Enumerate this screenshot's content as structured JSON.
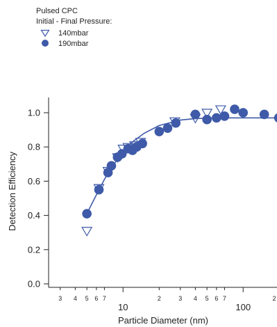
{
  "legend": {
    "title_line1": "Pulsed CPC",
    "title_line2": "Initial - Final Pressure:",
    "entries": [
      {
        "label": "140mbar",
        "marker": "open-triangle-down"
      },
      {
        "label": "190mbar",
        "marker": "filled-circle"
      }
    ]
  },
  "chart_data": {
    "type": "scatter",
    "xlabel": "Particle Diameter (nm)",
    "ylabel": "Detection Efficiency",
    "xscale": "log",
    "xlim": [
      2.4,
      200
    ],
    "ylim": [
      -0.02,
      1.1
    ],
    "grid": false,
    "legend_position": "top-left",
    "color": "#3e5aa8",
    "x_major_ticks": [
      10,
      100
    ],
    "x_major_tick_labels": [
      "10",
      "100"
    ],
    "x_minor_ticks": [
      3,
      4,
      5,
      6,
      7,
      20,
      30,
      40,
      50,
      60,
      70,
      200
    ],
    "x_minor_tick_labels": [
      "3",
      "4",
      "5",
      "6",
      "7",
      "2",
      "3",
      "4",
      "5",
      "6",
      "7",
      "2"
    ],
    "y_ticks": [
      0.0,
      0.2,
      0.4,
      0.6,
      0.8,
      1.0
    ],
    "y_tick_labels": [
      "0.0",
      "0.2",
      "0.4",
      "0.6",
      "0.8",
      "1.0"
    ],
    "series": [
      {
        "name": "140mbar",
        "marker": "open-triangle-down",
        "points": [
          {
            "x": 5.0,
            "y": 0.31
          },
          {
            "x": 6.3,
            "y": 0.56
          },
          {
            "x": 7.5,
            "y": 0.66
          },
          {
            "x": 9.0,
            "y": 0.74
          },
          {
            "x": 10.0,
            "y": 0.79
          },
          {
            "x": 11.0,
            "y": 0.8
          },
          {
            "x": 12.5,
            "y": 0.81
          },
          {
            "x": 14.0,
            "y": 0.83
          },
          {
            "x": 27.0,
            "y": 0.95
          },
          {
            "x": 40.0,
            "y": 0.97
          },
          {
            "x": 50.0,
            "y": 1.0
          },
          {
            "x": 65.0,
            "y": 1.02
          }
        ]
      },
      {
        "name": "190mbar",
        "marker": "filled-circle",
        "points": [
          {
            "x": 5.0,
            "y": 0.41
          },
          {
            "x": 6.3,
            "y": 0.55
          },
          {
            "x": 7.5,
            "y": 0.65
          },
          {
            "x": 8.0,
            "y": 0.69
          },
          {
            "x": 9.0,
            "y": 0.74
          },
          {
            "x": 9.8,
            "y": 0.76
          },
          {
            "x": 11.0,
            "y": 0.79
          },
          {
            "x": 12.0,
            "y": 0.78
          },
          {
            "x": 13.0,
            "y": 0.8
          },
          {
            "x": 14.5,
            "y": 0.82
          },
          {
            "x": 20.0,
            "y": 0.89
          },
          {
            "x": 23.5,
            "y": 0.91
          },
          {
            "x": 27.5,
            "y": 0.94
          },
          {
            "x": 40.0,
            "y": 0.99
          },
          {
            "x": 50.0,
            "y": 0.96
          },
          {
            "x": 60.0,
            "y": 0.97
          },
          {
            "x": 70.0,
            "y": 0.98
          },
          {
            "x": 85.0,
            "y": 1.02
          },
          {
            "x": 100.0,
            "y": 1.0
          },
          {
            "x": 150.0,
            "y": 0.99
          },
          {
            "x": 198.0,
            "y": 0.97
          }
        ]
      },
      {
        "name": "",
        "type": "line",
        "points": [
          {
            "x": 5.0,
            "y": 0.41
          },
          {
            "x": 6.0,
            "y": 0.52
          },
          {
            "x": 7.0,
            "y": 0.61
          },
          {
            "x": 8.0,
            "y": 0.68
          },
          {
            "x": 10.0,
            "y": 0.77
          },
          {
            "x": 12.0,
            "y": 0.83
          },
          {
            "x": 15.0,
            "y": 0.88
          },
          {
            "x": 20.0,
            "y": 0.925
          },
          {
            "x": 30.0,
            "y": 0.957
          },
          {
            "x": 40.0,
            "y": 0.966
          },
          {
            "x": 60.0,
            "y": 0.97
          },
          {
            "x": 100.0,
            "y": 0.97
          },
          {
            "x": 200.0,
            "y": 0.97
          }
        ]
      }
    ]
  }
}
